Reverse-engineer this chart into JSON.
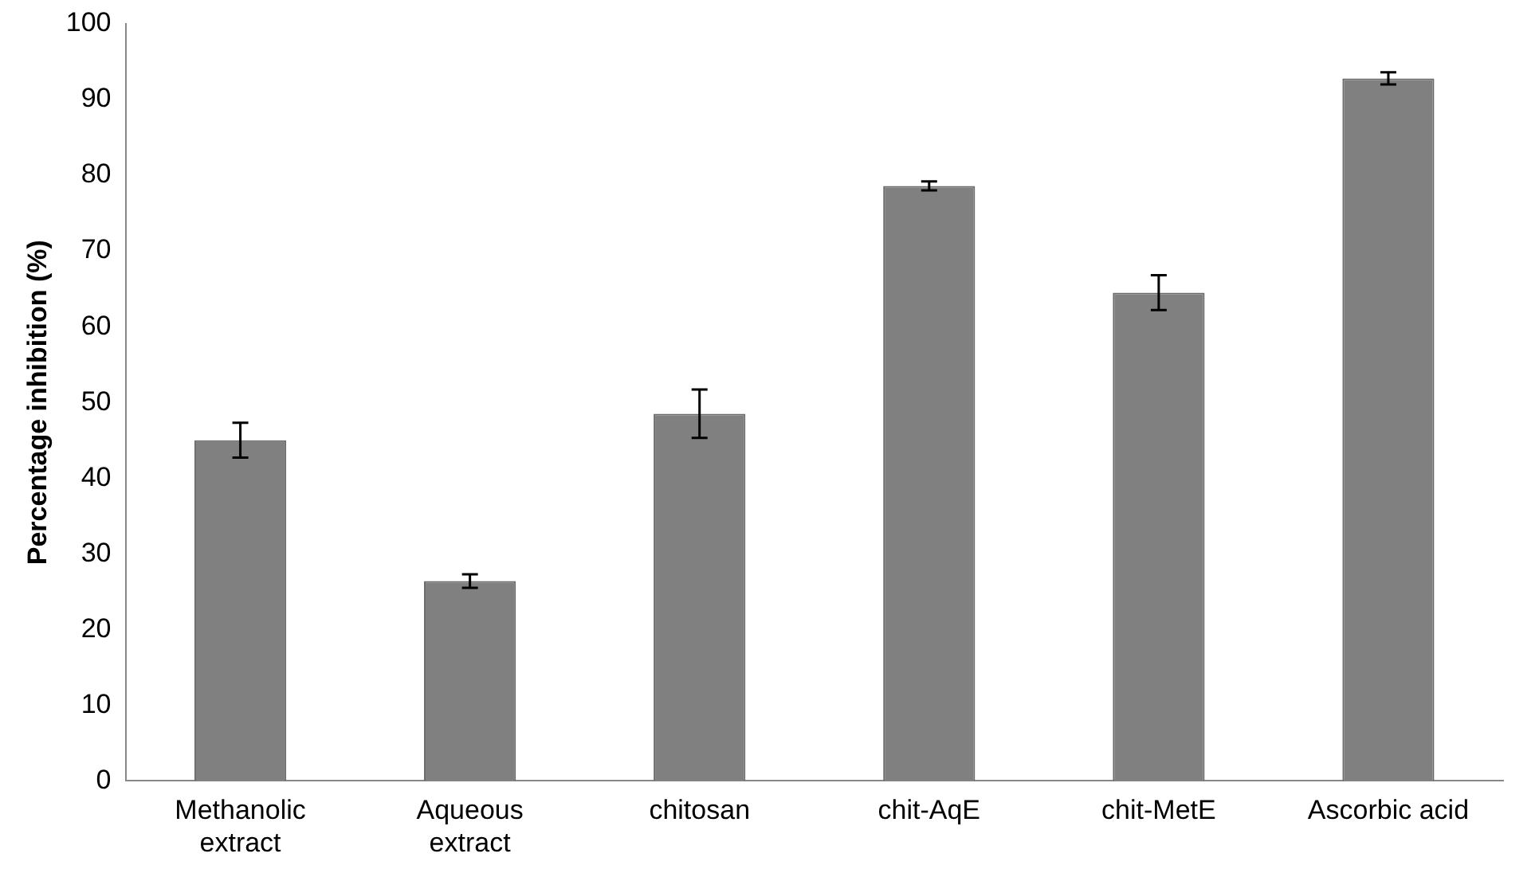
{
  "chart_data": {
    "type": "bar",
    "ylabel": "Percentage inhibition (%)",
    "categories": [
      "Methanolic extract",
      "Aqueous extract",
      "chitosan",
      "chit-AqE",
      "chit-MetE",
      "Ascorbic acid"
    ],
    "values": [
      45.0,
      26.4,
      48.5,
      78.6,
      64.5,
      92.8
    ],
    "errors": [
      2.3,
      0.9,
      3.2,
      0.6,
      2.3,
      0.8
    ],
    "color": "#808080",
    "ylim": [
      0,
      100
    ],
    "yticks": [
      0,
      10,
      20,
      30,
      40,
      50,
      60,
      70,
      80,
      90,
      100
    ],
    "grid": false,
    "legend": false
  }
}
